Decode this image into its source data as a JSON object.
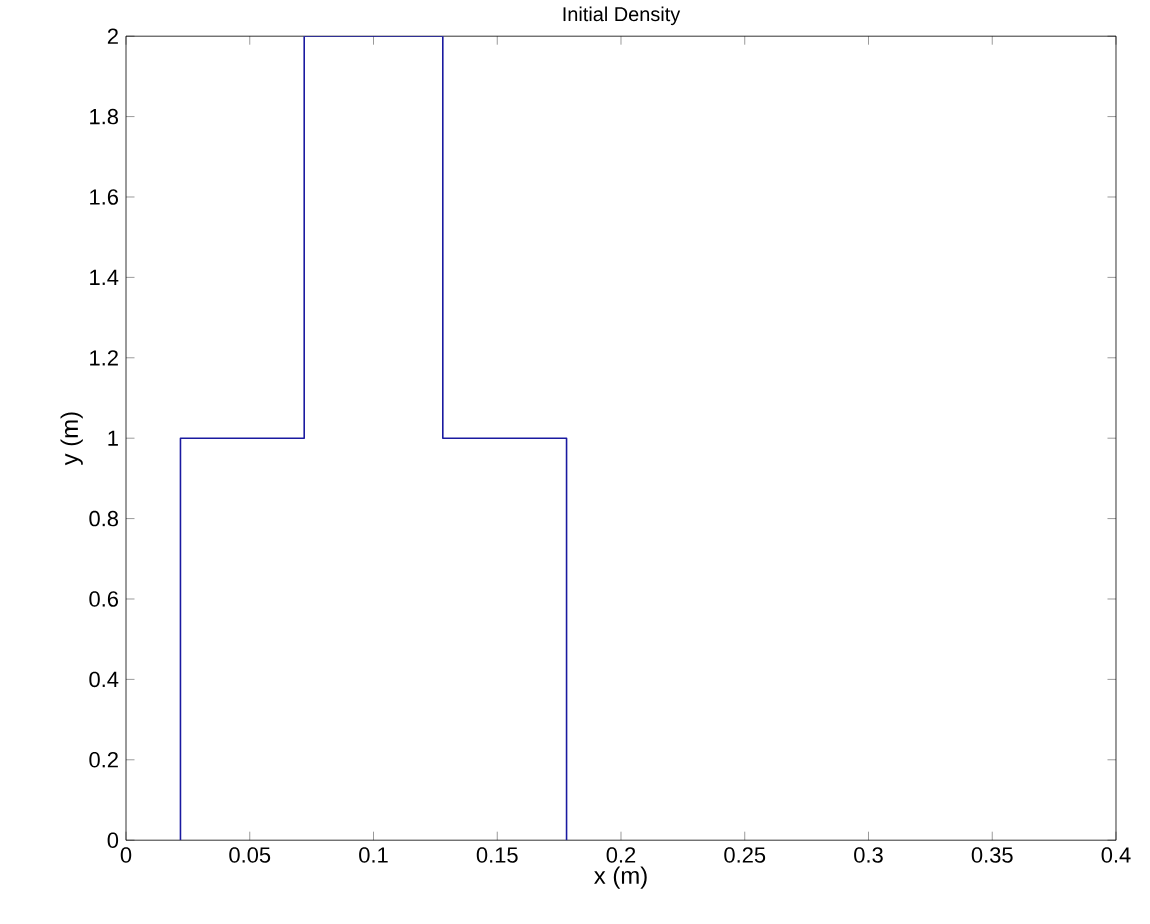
{
  "chart_data": {
    "type": "line",
    "title": "Initial Density",
    "xlabel": "x (m)",
    "ylabel": "y (m)",
    "series": [
      {
        "color": "#1a1aa0",
        "x": [
          0.022,
          0.022,
          0.072,
          0.072,
          0.128,
          0.128,
          0.178,
          0.178
        ],
        "values": [
          0,
          1,
          1,
          2,
          2,
          1,
          1,
          0
        ]
      }
    ],
    "xlim": [
      0,
      0.4
    ],
    "ylim": [
      0,
      2
    ],
    "xticks": [
      0,
      0.05,
      0.1,
      0.15,
      0.2,
      0.25,
      0.3,
      0.35,
      0.4
    ],
    "yticks": [
      0,
      0.2,
      0.4,
      0.6,
      0.8,
      1,
      1.2,
      1.4,
      1.6,
      1.8,
      2
    ],
    "grid": false,
    "marker": "none",
    "line_style": "solid"
  }
}
